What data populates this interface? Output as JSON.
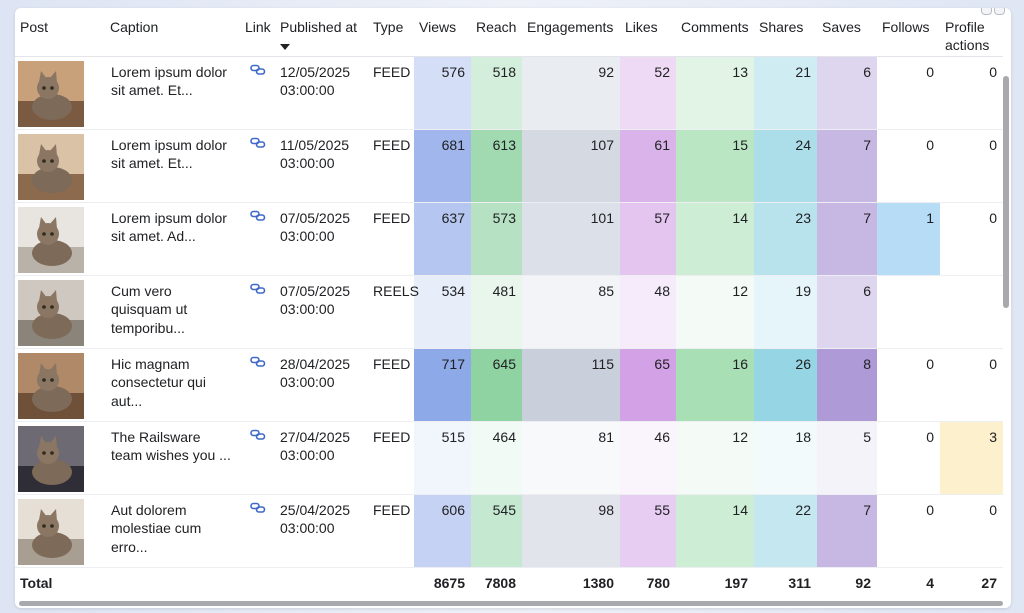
{
  "columns": [
    {
      "key": "post",
      "label": "Post"
    },
    {
      "key": "caption",
      "label": "Caption"
    },
    {
      "key": "link",
      "label": "Link"
    },
    {
      "key": "published",
      "label": "Published at",
      "sorted": "desc"
    },
    {
      "key": "type",
      "label": "Type"
    },
    {
      "key": "views",
      "label": "Views"
    },
    {
      "key": "reach",
      "label": "Reach"
    },
    {
      "key": "engagements",
      "label": "Engagements"
    },
    {
      "key": "likes",
      "label": "Likes"
    },
    {
      "key": "comments",
      "label": "Comments"
    },
    {
      "key": "shares",
      "label": "Shares"
    },
    {
      "key": "saves",
      "label": "Saves"
    },
    {
      "key": "follows",
      "label": "Follows"
    },
    {
      "key": "profile_actions",
      "label": "Profile actions"
    }
  ],
  "icons": {
    "link": "link-icon",
    "post": "post-thumbnail"
  },
  "colors": {
    "views": "#8ea9e8",
    "reach": "#8fd3a3",
    "engagements": "#c9cfdb",
    "likes": "#d3a2e6",
    "comments": "#a8dfb4",
    "shares": "#95d5e4",
    "saves": "#ae9ad6",
    "follows": "#b6dcf6",
    "profile_actions": "#fdf0cc"
  },
  "rows": [
    {
      "caption": "Lorem ipsum dolor sit amet. Et...",
      "published": "12/05/2025 03:00:00",
      "type": "FEED",
      "views": "576",
      "reach": "518",
      "engagements": "92",
      "likes": "52",
      "comments": "13",
      "shares": "21",
      "saves": "6",
      "follows": "0",
      "profile_actions": "0"
    },
    {
      "caption": "Lorem ipsum dolor sit amet. Et...",
      "published": "11/05/2025 03:00:00",
      "type": "FEED",
      "views": "681",
      "reach": "613",
      "engagements": "107",
      "likes": "61",
      "comments": "15",
      "shares": "24",
      "saves": "7",
      "follows": "0",
      "profile_actions": "0"
    },
    {
      "caption": "Lorem ipsum dolor sit amet. Ad...",
      "published": "07/05/2025 03:00:00",
      "type": "FEED",
      "views": "637",
      "reach": "573",
      "engagements": "101",
      "likes": "57",
      "comments": "14",
      "shares": "23",
      "saves": "7",
      "follows": "1",
      "profile_actions": "0"
    },
    {
      "caption": "Cum vero quisquam ut temporibu...",
      "published": "07/05/2025 03:00:00",
      "type": "REELS",
      "views": "534",
      "reach": "481",
      "engagements": "85",
      "likes": "48",
      "comments": "12",
      "shares": "19",
      "saves": "6",
      "follows": "",
      "profile_actions": ""
    },
    {
      "caption": "Hic magnam consectetur qui aut...",
      "published": "28/04/2025 03:00:00",
      "type": "FEED",
      "views": "717",
      "reach": "645",
      "engagements": "115",
      "likes": "65",
      "comments": "16",
      "shares": "26",
      "saves": "8",
      "follows": "0",
      "profile_actions": "0"
    },
    {
      "caption": "The Railsware team wishes you ...",
      "published": "27/04/2025 03:00:00",
      "type": "FEED",
      "views": "515",
      "reach": "464",
      "engagements": "81",
      "likes": "46",
      "comments": "12",
      "shares": "18",
      "saves": "5",
      "follows": "0",
      "profile_actions": "3"
    },
    {
      "caption": "Aut dolorem molestiae cum erro...",
      "published": "25/04/2025 03:00:00",
      "type": "FEED",
      "views": "606",
      "reach": "545",
      "engagements": "98",
      "likes": "55",
      "comments": "14",
      "shares": "22",
      "saves": "7",
      "follows": "0",
      "profile_actions": "0"
    }
  ],
  "total": {
    "label": "Total",
    "views": "8675",
    "reach": "7808",
    "engagements": "1380",
    "likes": "780",
    "comments": "197",
    "shares": "311",
    "saves": "92",
    "follows": "4",
    "profile_actions": "27"
  }
}
